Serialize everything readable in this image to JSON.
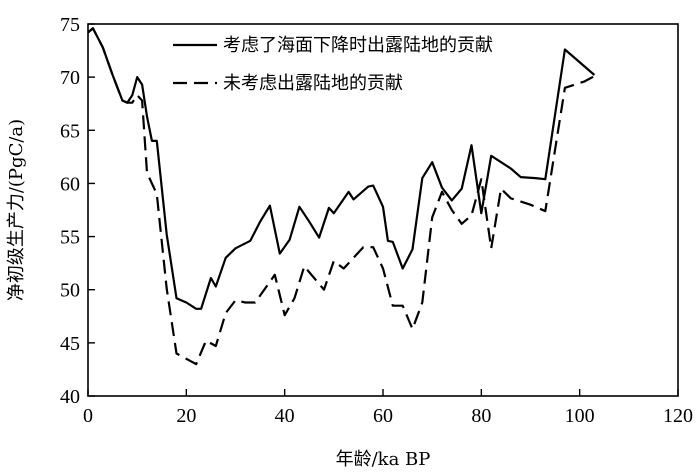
{
  "chart_data": {
    "type": "line",
    "xlabel": "年龄/ka BP",
    "ylabel": "净初级生产力/(PgC/a)",
    "xlim": [
      0,
      120
    ],
    "ylim": [
      40,
      75
    ],
    "x_ticks": [
      0,
      20,
      40,
      60,
      80,
      100,
      120
    ],
    "y_ticks": [
      40,
      45,
      50,
      55,
      60,
      65,
      70,
      75
    ],
    "grid": false,
    "legend_position": "top-right",
    "series": [
      {
        "name": "考虑了海面下降时出露陆地的贡献",
        "style": "solid",
        "color": "#000000",
        "points": [
          [
            0,
            74.2
          ],
          [
            1,
            74.6
          ],
          [
            3,
            72.8
          ],
          [
            5,
            70.2
          ],
          [
            7,
            67.8
          ],
          [
            8,
            67.6
          ],
          [
            9,
            68.3
          ],
          [
            10,
            70.0
          ],
          [
            11,
            69.3
          ],
          [
            12,
            66.3
          ],
          [
            13,
            64.0
          ],
          [
            14,
            64.0
          ],
          [
            16,
            55.2
          ],
          [
            18,
            49.2
          ],
          [
            20,
            48.8
          ],
          [
            22,
            48.2
          ],
          [
            23,
            48.2
          ],
          [
            25,
            51.1
          ],
          [
            26,
            50.3
          ],
          [
            28,
            53.0
          ],
          [
            30,
            53.9
          ],
          [
            33,
            54.6
          ],
          [
            35,
            56.4
          ],
          [
            37,
            57.9
          ],
          [
            39,
            53.4
          ],
          [
            41,
            54.7
          ],
          [
            43,
            57.8
          ],
          [
            45,
            56.4
          ],
          [
            47,
            54.9
          ],
          [
            49,
            57.7
          ],
          [
            50,
            57.2
          ],
          [
            53,
            59.2
          ],
          [
            54,
            58.5
          ],
          [
            57,
            59.7
          ],
          [
            58,
            59.8
          ],
          [
            60,
            57.8
          ],
          [
            61,
            54.6
          ],
          [
            62,
            54.5
          ],
          [
            64,
            52.0
          ],
          [
            66,
            53.8
          ],
          [
            68,
            60.5
          ],
          [
            70,
            62.0
          ],
          [
            72,
            59.6
          ],
          [
            74,
            58.4
          ],
          [
            76,
            59.5
          ],
          [
            78,
            63.6
          ],
          [
            80,
            57.2
          ],
          [
            82,
            62.6
          ],
          [
            86,
            61.4
          ],
          [
            88,
            60.6
          ],
          [
            91,
            60.5
          ],
          [
            93,
            60.4
          ],
          [
            97,
            72.6
          ],
          [
            101,
            71.0
          ],
          [
            103,
            70.2
          ]
        ]
      },
      {
        "name": "未考虑出露陆地的贡献",
        "style": "dashed",
        "color": "#000000",
        "points": [
          [
            0,
            74.2
          ],
          [
            1,
            74.6
          ],
          [
            3,
            72.8
          ],
          [
            5,
            70.2
          ],
          [
            7,
            67.8
          ],
          [
            8,
            67.6
          ],
          [
            9,
            67.6
          ],
          [
            10,
            68.3
          ],
          [
            11,
            67.8
          ],
          [
            12,
            61.0
          ],
          [
            14,
            59.0
          ],
          [
            16,
            50.1
          ],
          [
            18,
            44.0
          ],
          [
            20,
            43.5
          ],
          [
            22,
            43.0
          ],
          [
            24,
            45.2
          ],
          [
            26,
            44.7
          ],
          [
            28,
            47.8
          ],
          [
            30,
            49.0
          ],
          [
            32,
            48.8
          ],
          [
            34,
            48.8
          ],
          [
            38,
            51.4
          ],
          [
            40,
            47.6
          ],
          [
            42,
            49.2
          ],
          [
            44,
            52.2
          ],
          [
            48,
            50.0
          ],
          [
            50,
            52.7
          ],
          [
            52,
            52.0
          ],
          [
            54,
            53.0
          ],
          [
            56,
            54.0
          ],
          [
            58,
            54.0
          ],
          [
            60,
            52.0
          ],
          [
            62,
            48.5
          ],
          [
            64,
            48.5
          ],
          [
            66,
            46.3
          ],
          [
            68,
            48.8
          ],
          [
            70,
            56.8
          ],
          [
            72,
            59.2
          ],
          [
            74,
            57.5
          ],
          [
            76,
            56.2
          ],
          [
            78,
            57.0
          ],
          [
            80,
            60.4
          ],
          [
            82,
            53.9
          ],
          [
            84,
            59.5
          ],
          [
            86,
            58.6
          ],
          [
            90,
            58.0
          ],
          [
            93,
            57.4
          ],
          [
            97,
            69.0
          ],
          [
            101,
            69.6
          ],
          [
            103,
            70.1
          ]
        ]
      }
    ]
  }
}
